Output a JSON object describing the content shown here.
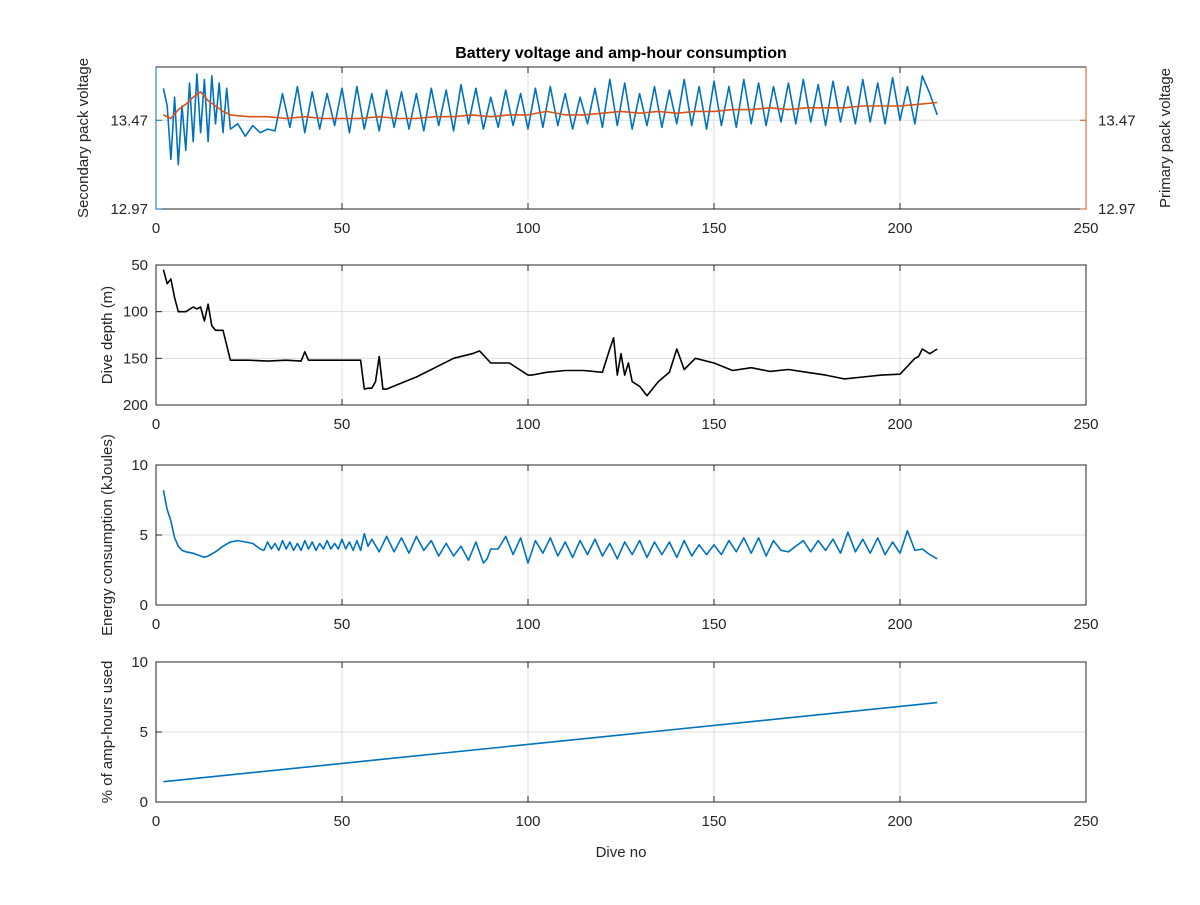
{
  "figure": {
    "title": "Battery voltage and amp-hour consumption",
    "xlabel": "Dive no"
  },
  "colors": {
    "blue": "#0072bd",
    "orange": "#d95319",
    "black": "#000000",
    "grid": "#dedede",
    "axis": "#262626"
  },
  "chart_data": [
    {
      "type": "line",
      "title": "Battery voltage and amp-hour consumption",
      "xlim": [
        0,
        250
      ],
      "xticks": [
        0,
        50,
        100,
        150,
        200,
        250
      ],
      "ylim": [
        12.97,
        13.77
      ],
      "yticks_left": [
        12.97,
        13.47
      ],
      "yticks_right": [
        12.97,
        13.47
      ],
      "ylabel_left": "Secondary pack voltage",
      "ylabel_right": "Primary pack voltage",
      "grid": true,
      "series": [
        {
          "name": "Secondary pack voltage",
          "axis": "left",
          "color": "#0072bd",
          "x": [
            2,
            3,
            4,
            5,
            6,
            7,
            8,
            9,
            10,
            11,
            12,
            13,
            14,
            15,
            16,
            17,
            18,
            19,
            20,
            22,
            24,
            26,
            28,
            30,
            32,
            34,
            36,
            38,
            40,
            42,
            44,
            46,
            48,
            50,
            52,
            54,
            56,
            58,
            60,
            62,
            64,
            66,
            68,
            70,
            72,
            74,
            76,
            78,
            80,
            82,
            84,
            86,
            88,
            90,
            92,
            94,
            96,
            98,
            100,
            102,
            104,
            106,
            108,
            110,
            112,
            114,
            116,
            118,
            120,
            122,
            124,
            126,
            128,
            130,
            132,
            134,
            136,
            138,
            140,
            142,
            144,
            146,
            148,
            150,
            152,
            154,
            156,
            158,
            160,
            162,
            164,
            166,
            168,
            170,
            172,
            174,
            176,
            178,
            180,
            182,
            184,
            186,
            188,
            190,
            192,
            194,
            196,
            198,
            200,
            202,
            204,
            206,
            208,
            210
          ],
          "values": [
            13.65,
            13.55,
            13.25,
            13.6,
            13.22,
            13.55,
            13.3,
            13.68,
            13.35,
            13.73,
            13.4,
            13.7,
            13.35,
            13.72,
            13.45,
            13.68,
            13.4,
            13.65,
            13.42,
            13.45,
            13.38,
            13.44,
            13.4,
            13.42,
            13.41,
            13.62,
            13.43,
            13.66,
            13.4,
            13.63,
            13.42,
            13.62,
            13.44,
            13.65,
            13.4,
            13.66,
            13.42,
            13.62,
            13.41,
            13.64,
            13.43,
            13.63,
            13.42,
            13.62,
            13.41,
            13.65,
            13.44,
            13.64,
            13.41,
            13.67,
            13.45,
            13.65,
            13.42,
            13.6,
            13.43,
            13.64,
            13.44,
            13.62,
            13.42,
            13.65,
            13.43,
            13.66,
            13.44,
            13.62,
            13.42,
            13.6,
            13.45,
            13.65,
            13.43,
            13.7,
            13.44,
            13.68,
            13.42,
            13.62,
            13.44,
            13.66,
            13.43,
            13.64,
            13.45,
            13.7,
            13.44,
            13.66,
            13.42,
            13.69,
            13.44,
            13.66,
            13.43,
            13.7,
            13.45,
            13.68,
            13.44,
            13.66,
            13.46,
            13.68,
            13.45,
            13.7,
            13.46,
            13.67,
            13.44,
            13.69,
            13.46,
            13.66,
            13.45,
            13.7,
            13.46,
            13.68,
            13.45,
            13.71,
            13.47,
            13.66,
            13.45,
            13.72,
            13.62,
            13.5
          ]
        },
        {
          "name": "Primary pack voltage",
          "axis": "right",
          "color": "#d95319",
          "x": [
            2,
            4,
            6,
            8,
            10,
            12,
            14,
            16,
            18,
            20,
            25,
            30,
            35,
            40,
            45,
            50,
            55,
            60,
            65,
            70,
            75,
            80,
            85,
            90,
            95,
            100,
            105,
            110,
            115,
            120,
            125,
            130,
            135,
            140,
            145,
            150,
            155,
            160,
            165,
            170,
            175,
            180,
            185,
            190,
            195,
            200,
            205,
            210
          ],
          "values": [
            13.5,
            13.48,
            13.53,
            13.56,
            13.6,
            13.63,
            13.58,
            13.55,
            13.52,
            13.5,
            13.49,
            13.49,
            13.48,
            13.49,
            13.48,
            13.48,
            13.48,
            13.49,
            13.48,
            13.48,
            13.49,
            13.49,
            13.5,
            13.49,
            13.5,
            13.5,
            13.52,
            13.5,
            13.5,
            13.51,
            13.52,
            13.51,
            13.52,
            13.51,
            13.52,
            13.52,
            13.53,
            13.53,
            13.54,
            13.53,
            13.54,
            13.54,
            13.54,
            13.55,
            13.55,
            13.55,
            13.56,
            13.57
          ]
        }
      ]
    },
    {
      "type": "line",
      "xlim": [
        0,
        250
      ],
      "xticks": [
        0,
        50,
        100,
        150,
        200,
        250
      ],
      "ylim": [
        50,
        200
      ],
      "y_reversed": true,
      "yticks": [
        50,
        100,
        150,
        200
      ],
      "ylabel": "Dive depth (m)",
      "grid": true,
      "series": [
        {
          "color": "#000000",
          "x": [
            2,
            3,
            4,
            5,
            6,
            8,
            10,
            11,
            12,
            13,
            14,
            15,
            16,
            18,
            20,
            25,
            30,
            35,
            39,
            40,
            41,
            45,
            50,
            55,
            56,
            57,
            58,
            59,
            60,
            61,
            62,
            65,
            70,
            75,
            80,
            85,
            87,
            90,
            95,
            100,
            101,
            105,
            110,
            115,
            120,
            122,
            123,
            124,
            125,
            126,
            127,
            128,
            130,
            132,
            135,
            138,
            140,
            142,
            145,
            150,
            155,
            160,
            165,
            170,
            175,
            180,
            185,
            190,
            195,
            200,
            204,
            205,
            206,
            208,
            210
          ],
          "values": [
            55,
            70,
            65,
            85,
            100,
            100,
            95,
            97,
            95,
            110,
            92,
            115,
            120,
            120,
            152,
            152,
            153,
            152,
            153,
            143,
            152,
            152,
            152,
            152,
            183,
            182,
            182,
            175,
            148,
            183,
            183,
            178,
            170,
            160,
            150,
            145,
            142,
            155,
            155,
            168,
            168,
            165,
            163,
            163,
            165,
            140,
            128,
            168,
            145,
            168,
            155,
            175,
            180,
            190,
            175,
            165,
            140,
            162,
            150,
            155,
            163,
            160,
            164,
            162,
            165,
            168,
            172,
            170,
            168,
            167,
            150,
            148,
            140,
            145,
            140
          ]
        }
      ]
    },
    {
      "type": "line",
      "xlim": [
        0,
        250
      ],
      "xticks": [
        0,
        50,
        100,
        150,
        200,
        250
      ],
      "ylim": [
        0,
        10
      ],
      "yticks": [
        0,
        5,
        10
      ],
      "ylabel": "Energy consumption (kJoules)",
      "grid": true,
      "series": [
        {
          "color": "#0072bd",
          "x": [
            2,
            3,
            4,
            5,
            6,
            7,
            8,
            10,
            12,
            13,
            14,
            16,
            18,
            20,
            22,
            24,
            26,
            28,
            29,
            30,
            31,
            32,
            33,
            34,
            35,
            36,
            37,
            38,
            39,
            40,
            41,
            42,
            43,
            44,
            45,
            46,
            47,
            48,
            49,
            50,
            51,
            52,
            53,
            54,
            55,
            56,
            57,
            58,
            60,
            62,
            64,
            66,
            68,
            70,
            72,
            74,
            76,
            78,
            80,
            82,
            84,
            86,
            88,
            89,
            90,
            92,
            94,
            96,
            98,
            100,
            102,
            104,
            106,
            108,
            110,
            112,
            114,
            116,
            118,
            120,
            122,
            124,
            126,
            128,
            130,
            132,
            134,
            136,
            138,
            140,
            142,
            144,
            146,
            148,
            150,
            152,
            154,
            156,
            158,
            160,
            162,
            164,
            166,
            168,
            170,
            174,
            176,
            178,
            180,
            182,
            184,
            186,
            188,
            190,
            192,
            194,
            196,
            198,
            200,
            202,
            204,
            206,
            208,
            210
          ],
          "values": [
            8.2,
            6.8,
            6.0,
            4.8,
            4.2,
            3.9,
            3.8,
            3.7,
            3.5,
            3.4,
            3.5,
            3.8,
            4.2,
            4.5,
            4.6,
            4.5,
            4.4,
            4.0,
            3.9,
            4.5,
            4.0,
            4.4,
            3.9,
            4.6,
            4.0,
            4.5,
            3.9,
            4.4,
            3.9,
            4.6,
            4.0,
            4.5,
            3.9,
            4.4,
            4.0,
            4.6,
            4.0,
            4.4,
            4.0,
            4.7,
            4.0,
            4.5,
            3.9,
            4.6,
            3.9,
            5.1,
            4.2,
            4.7,
            3.8,
            4.9,
            3.8,
            4.8,
            3.7,
            4.9,
            3.9,
            4.6,
            3.5,
            4.4,
            3.5,
            4.2,
            3.2,
            4.5,
            3.0,
            3.3,
            4.0,
            4.0,
            4.9,
            3.6,
            4.8,
            3.0,
            4.6,
            3.7,
            4.8,
            3.5,
            4.5,
            3.4,
            4.6,
            3.6,
            4.7,
            3.5,
            4.4,
            3.3,
            4.5,
            3.6,
            4.6,
            3.4,
            4.5,
            3.6,
            4.5,
            3.4,
            4.6,
            3.5,
            4.3,
            3.6,
            4.3,
            3.6,
            4.6,
            3.8,
            4.8,
            3.7,
            4.8,
            3.5,
            4.6,
            3.9,
            3.8,
            4.6,
            3.8,
            4.6,
            3.9,
            4.7,
            3.7,
            5.2,
            3.8,
            4.7,
            3.7,
            4.8,
            3.6,
            4.5,
            3.7,
            5.3,
            3.9,
            4.0,
            3.6,
            3.3
          ]
        }
      ]
    },
    {
      "type": "line",
      "xlim": [
        0,
        250
      ],
      "xticks": [
        0,
        50,
        100,
        150,
        200,
        250
      ],
      "ylim": [
        0,
        10
      ],
      "yticks": [
        0,
        5,
        10
      ],
      "xlabel": "Dive no",
      "ylabel": "% of amp-hours used",
      "grid": true,
      "series": [
        {
          "color": "#0072bd",
          "x": [
            2,
            210
          ],
          "values": [
            1.45,
            7.1
          ]
        }
      ]
    }
  ]
}
